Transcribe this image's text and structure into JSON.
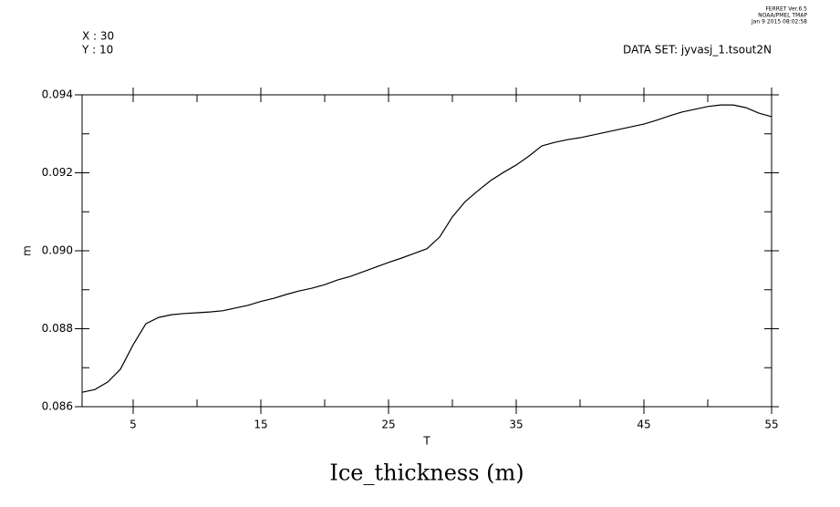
{
  "chart_data": {
    "type": "line",
    "title": "Ice_thickness (m)",
    "x_label": "T",
    "y_label": "m",
    "header_left": [
      "X : 30",
      "Y : 10"
    ],
    "dataset": "DATA SET: jyvasj_1.tsout2N",
    "stamp": [
      "FERRET  Ver.6.5",
      "NOAA/PMEL TMAP",
      "Jan  9 2015 08:02:58"
    ],
    "x": [
      1,
      2,
      3,
      4,
      5,
      6,
      7,
      8,
      9,
      10,
      11,
      12,
      13,
      14,
      15,
      16,
      17,
      18,
      19,
      20,
      21,
      22,
      23,
      24,
      25,
      26,
      27,
      28,
      29,
      30,
      31,
      32,
      33,
      34,
      35,
      36,
      37,
      38,
      39,
      40,
      41,
      42,
      43,
      44,
      45,
      46,
      47,
      48,
      49,
      50,
      51,
      52,
      53,
      54,
      55
    ],
    "series": [
      {
        "color": "#000000",
        "values": [
          0.08637,
          0.08644,
          0.08663,
          0.08696,
          0.08759,
          0.08813,
          0.08829,
          0.08836,
          0.08839,
          0.08841,
          0.08843,
          0.08846,
          0.08853,
          0.0886,
          0.0887,
          0.08878,
          0.08888,
          0.08897,
          0.08904,
          0.08913,
          0.08925,
          0.08934,
          0.08946,
          0.08958,
          0.0897,
          0.08981,
          0.08993,
          0.09005,
          0.09035,
          0.09087,
          0.09126,
          0.09154,
          0.0918,
          0.09201,
          0.0922,
          0.09243,
          0.09269,
          0.09278,
          0.09285,
          0.0929,
          0.09297,
          0.09304,
          0.09311,
          0.09318,
          0.09325,
          0.09335,
          0.09346,
          0.09356,
          0.09363,
          0.0937,
          0.09374,
          0.09374,
          0.09367,
          0.09353,
          0.09344
        ]
      }
    ],
    "xlim": [
      1,
      55
    ],
    "ylim": [
      0.086,
      0.094
    ],
    "xticks": [
      5,
      15,
      25,
      35,
      45,
      55
    ],
    "xminor_ticks": [
      10,
      20,
      30,
      40,
      50
    ],
    "yticks": [
      {
        "value": 0.086,
        "label": "0.086"
      },
      {
        "value": 0.088,
        "label": "0.088"
      },
      {
        "value": 0.09,
        "label": "0.090"
      },
      {
        "value": 0.092,
        "label": "0.092"
      },
      {
        "value": 0.094,
        "label": "0.094"
      }
    ],
    "yminor_ticks": [
      0.087,
      0.089,
      0.091,
      0.093
    ]
  }
}
